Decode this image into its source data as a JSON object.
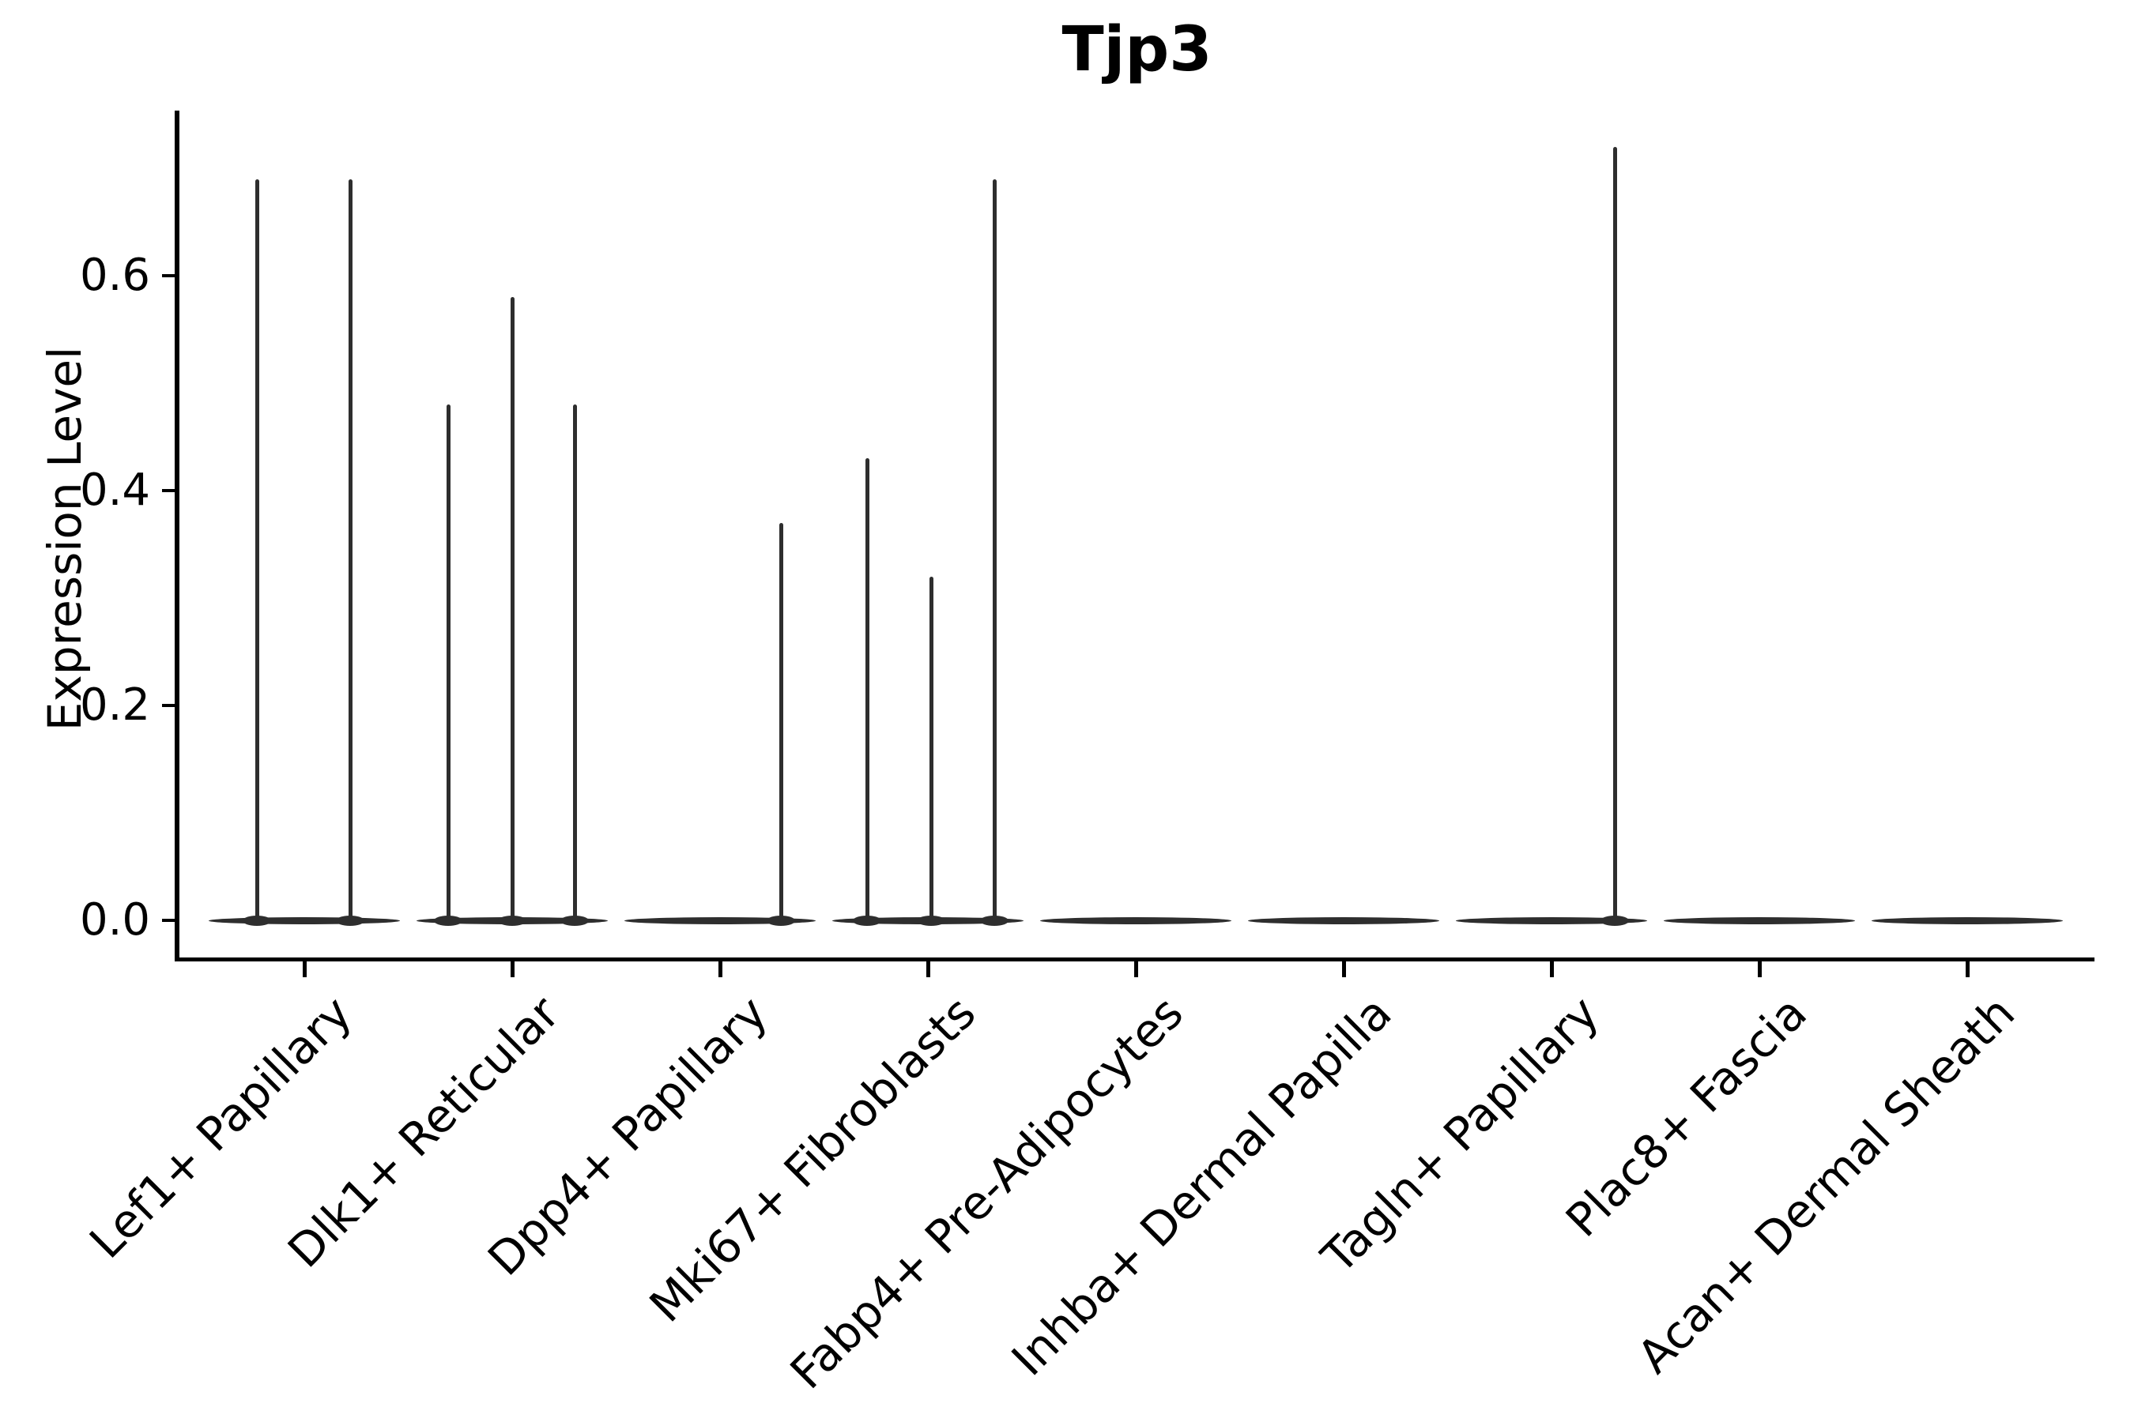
{
  "title": "Tjp3",
  "y_axis": {
    "label": "Expression Level",
    "ticks": [
      {
        "label": "0.0",
        "value": 0.0
      },
      {
        "label": "0.2",
        "value": 0.2
      },
      {
        "label": "0.4",
        "value": 0.4
      },
      {
        "label": "0.6",
        "value": 0.6
      }
    ]
  },
  "chart_data": {
    "type": "violin",
    "title": "Tjp3",
    "xlabel": "",
    "ylabel": "Expression Level",
    "ylim": [
      -0.035,
      0.754
    ],
    "yticks": [
      0.0,
      0.2,
      0.4,
      0.6
    ],
    "grid": false,
    "legend": "none",
    "categories": [
      "Lef1+ Papillary",
      "Dlk1+ Reticular",
      "Dpp4+ Papillary",
      "Mki67+ Fibroblasts",
      "Fabp4+ Pre-Adipocytes",
      "Inhba+ Dermal Papilla",
      "Tagln+ Papillary",
      "Plac8+ Fascia",
      "Acan+ Dermal Sheath"
    ],
    "violins": [
      {
        "category": "Lef1+ Papillary",
        "baseline_value": 0.0,
        "spikes": [
          {
            "dx": -60,
            "max": 0.69
          },
          {
            "dx": 58,
            "max": 0.69
          }
        ]
      },
      {
        "category": "Dlk1+ Reticular",
        "baseline_value": 0.0,
        "spikes": [
          {
            "dx": -81,
            "max": 0.48
          },
          {
            "dx": 0,
            "max": 0.58
          },
          {
            "dx": 79,
            "max": 0.48
          }
        ]
      },
      {
        "category": "Dpp4+ Papillary",
        "baseline_value": 0.0,
        "spikes": [
          {
            "dx": 77,
            "max": 0.37
          }
        ]
      },
      {
        "category": "Mki67+ Fibroblasts",
        "baseline_value": 0.0,
        "spikes": [
          {
            "dx": -77,
            "max": 0.43
          },
          {
            "dx": 4,
            "max": 0.32
          },
          {
            "dx": 84,
            "max": 0.69
          }
        ]
      },
      {
        "category": "Fabp4+ Pre-Adipocytes",
        "baseline_value": 0.0,
        "spikes": []
      },
      {
        "category": "Inhba+ Dermal Papilla",
        "baseline_value": 0.0,
        "spikes": []
      },
      {
        "category": "Tagln+ Papillary",
        "baseline_value": 0.0,
        "spikes": [
          {
            "dx": 80,
            "max": 0.72
          }
        ]
      },
      {
        "category": "Plac8+ Fascia",
        "baseline_value": 0.0,
        "spikes": []
      },
      {
        "category": "Acan+ Dermal Sheath",
        "baseline_value": 0.0,
        "spikes": []
      }
    ],
    "style": {
      "violin_color": "#2e2e2e",
      "axis_color": "#000000",
      "text_color": "#000000",
      "background": "#ffffff"
    }
  }
}
